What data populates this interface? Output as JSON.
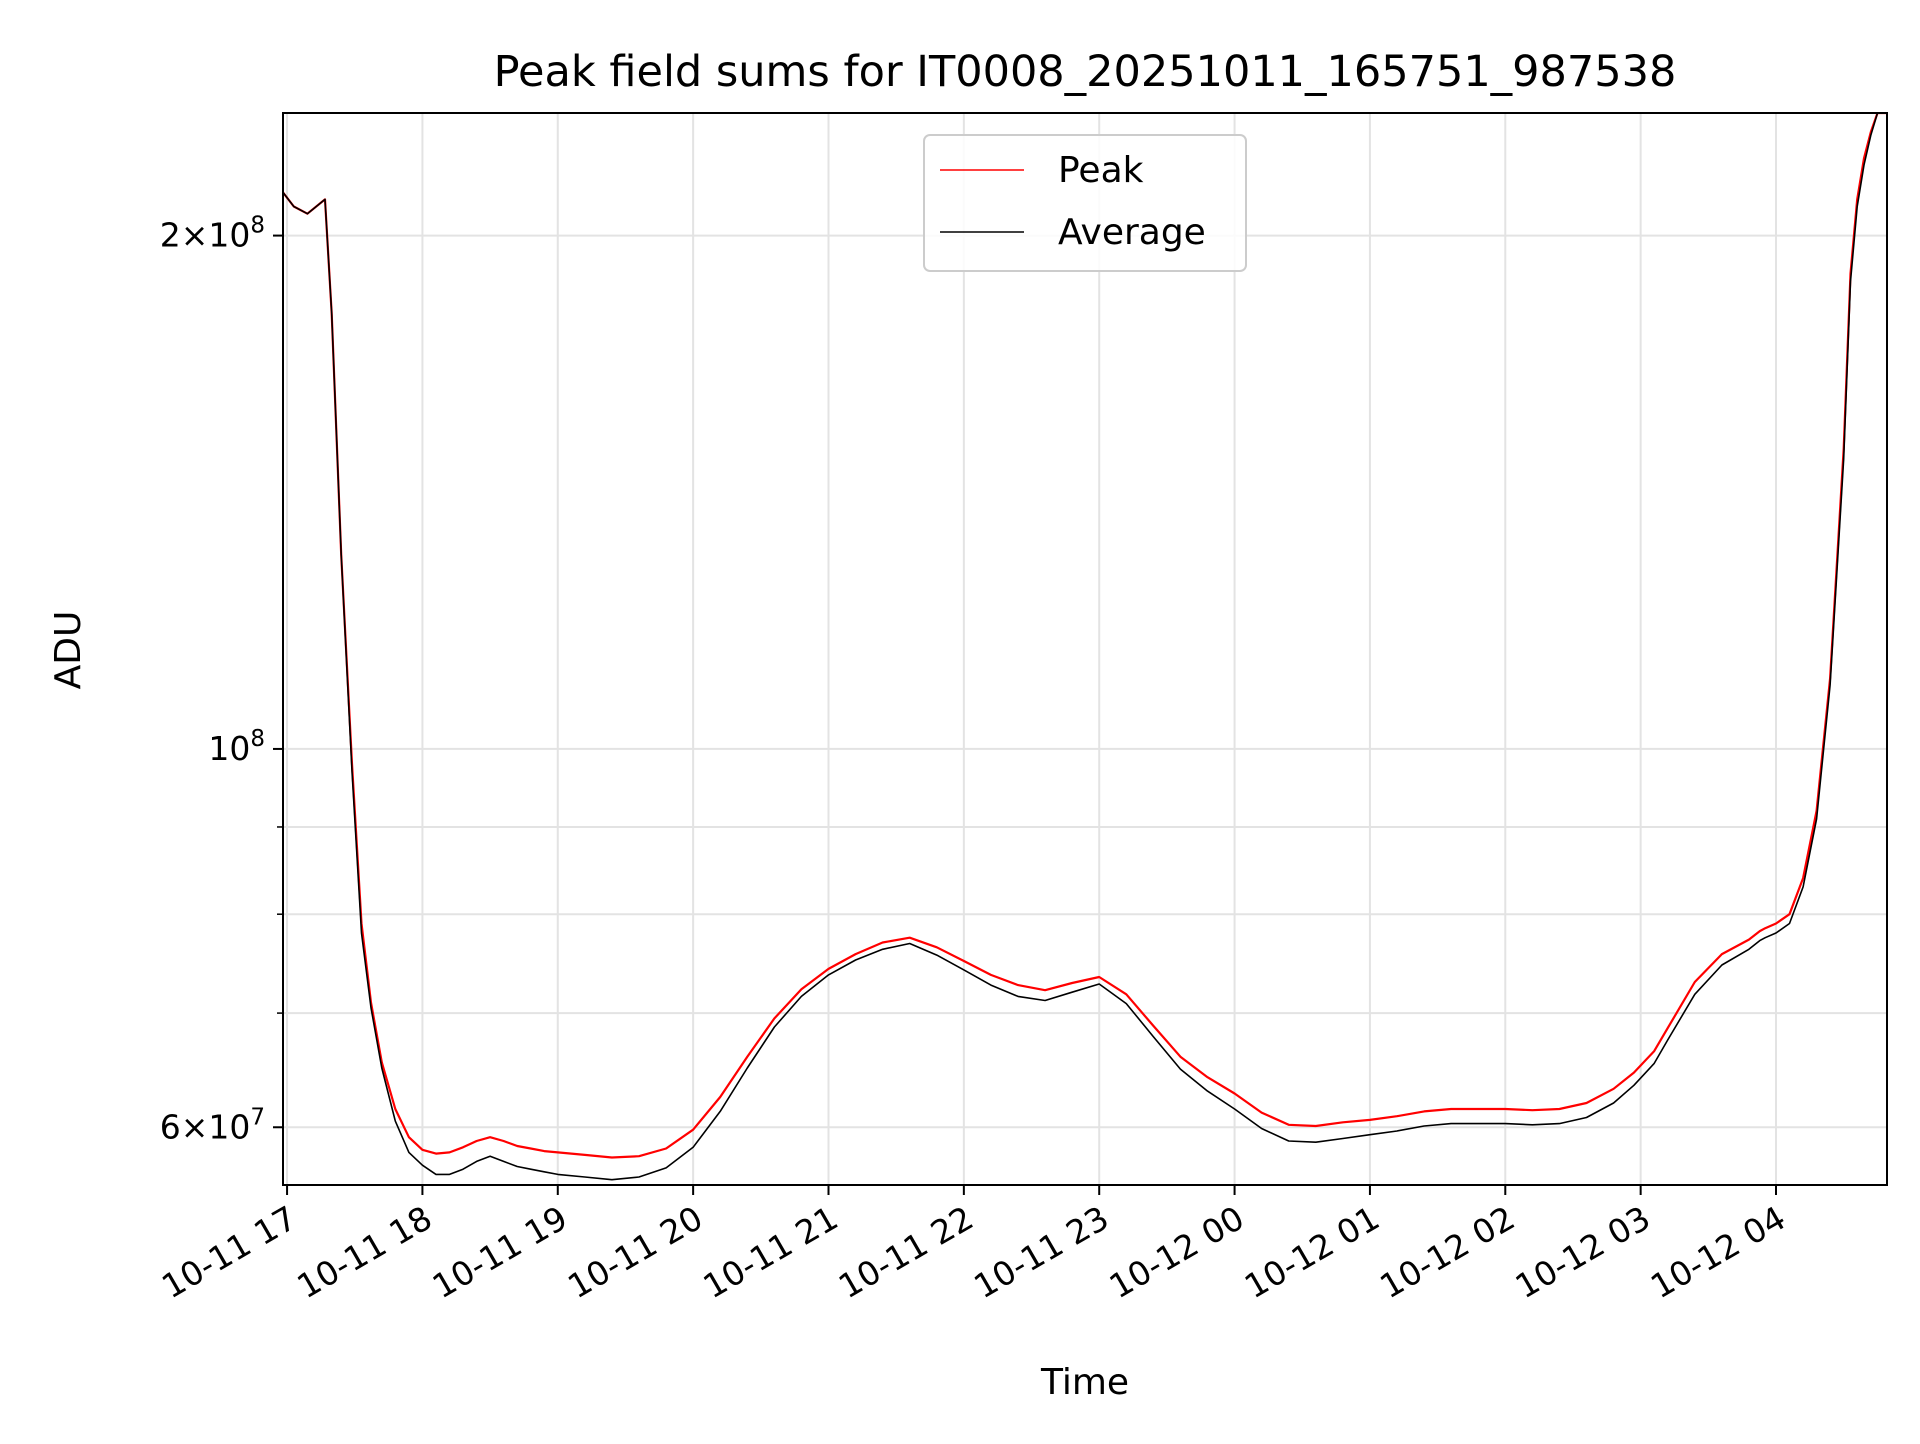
{
  "chart_data": {
    "type": "line",
    "title": "Peak field sums for IT0008_20251011_165751_987538",
    "xlabel": "Time",
    "ylabel": "ADU",
    "yscale": "log",
    "grid": true,
    "legend_position": "top-center",
    "xlim_hours": [
      -0.03,
      11.82
    ],
    "ylim": [
      55500000,
      236000000
    ],
    "x_ticks": [
      {
        "hour": 0,
        "label": "10-11 17"
      },
      {
        "hour": 1,
        "label": "10-11 18"
      },
      {
        "hour": 2,
        "label": "10-11 19"
      },
      {
        "hour": 3,
        "label": "10-11 20"
      },
      {
        "hour": 4,
        "label": "10-11 21"
      },
      {
        "hour": 5,
        "label": "10-11 22"
      },
      {
        "hour": 6,
        "label": "10-11 23"
      },
      {
        "hour": 7,
        "label": "10-12 00"
      },
      {
        "hour": 8,
        "label": "10-12 01"
      },
      {
        "hour": 9,
        "label": "10-12 02"
      },
      {
        "hour": 10,
        "label": "10-12 03"
      },
      {
        "hour": 11,
        "label": "10-12 04"
      }
    ],
    "y_major_ticks": [
      {
        "value": 60000000,
        "base": "6",
        "exp": "7"
      },
      {
        "value": 100000000,
        "base": "",
        "exp": "8"
      },
      {
        "value": 200000000,
        "base": "2",
        "exp": "8"
      }
    ],
    "y_minor_ticks": [
      70000000,
      80000000,
      90000000
    ],
    "series": [
      {
        "name": "Peak",
        "color": "#ff0000",
        "x_hours": [
          -0.03,
          0.05,
          0.15,
          0.28,
          0.33,
          0.4,
          0.48,
          0.55,
          0.62,
          0.7,
          0.8,
          0.9,
          1.0,
          1.1,
          1.2,
          1.3,
          1.4,
          1.5,
          1.6,
          1.7,
          1.8,
          1.9,
          2.0,
          2.2,
          2.4,
          2.6,
          2.8,
          3.0,
          3.2,
          3.4,
          3.6,
          3.8,
          4.0,
          4.2,
          4.4,
          4.6,
          4.8,
          5.0,
          5.2,
          5.4,
          5.6,
          5.8,
          6.0,
          6.2,
          6.4,
          6.6,
          6.8,
          7.0,
          7.2,
          7.4,
          7.6,
          7.8,
          8.0,
          8.2,
          8.4,
          8.6,
          8.8,
          9.0,
          9.2,
          9.4,
          9.6,
          9.8,
          9.95,
          10.1,
          10.2,
          10.4,
          10.6,
          10.8,
          10.88,
          10.92,
          11.0,
          11.1,
          11.2,
          11.3,
          11.4,
          11.5,
          11.55,
          11.6,
          11.65,
          11.7,
          11.75,
          11.82
        ],
        "values": [
          212000000,
          208000000,
          206000000,
          210000000,
          180000000,
          130000000,
          98000000,
          79000000,
          71000000,
          65500000,
          61500000,
          59200000,
          58200000,
          57900000,
          58000000,
          58400000,
          58900000,
          59200000,
          58900000,
          58500000,
          58300000,
          58100000,
          58000000,
          57800000,
          57600000,
          57700000,
          58300000,
          59800000,
          62500000,
          66000000,
          69500000,
          72300000,
          74300000,
          75800000,
          77000000,
          77500000,
          76500000,
          75100000,
          73700000,
          72700000,
          72200000,
          72900000,
          73500000,
          71800000,
          68800000,
          66000000,
          64200000,
          62800000,
          61200000,
          60200000,
          60100000,
          60400000,
          60600000,
          60900000,
          61300000,
          61500000,
          61500000,
          61500000,
          61400000,
          61500000,
          62000000,
          63200000,
          64600000,
          66500000,
          68600000,
          73000000,
          75800000,
          77300000,
          78200000,
          78500000,
          79000000,
          80000000,
          84000000,
          92000000,
          110000000,
          150000000,
          190000000,
          210000000,
          222000000,
          230000000,
          236000000,
          236000000
        ]
      },
      {
        "name": "Average",
        "color": "#000000",
        "x_hours": [
          -0.03,
          0.05,
          0.15,
          0.28,
          0.33,
          0.4,
          0.48,
          0.55,
          0.62,
          0.7,
          0.8,
          0.9,
          1.0,
          1.1,
          1.2,
          1.3,
          1.4,
          1.5,
          1.6,
          1.7,
          1.8,
          1.9,
          2.0,
          2.2,
          2.4,
          2.6,
          2.8,
          3.0,
          3.2,
          3.4,
          3.6,
          3.8,
          4.0,
          4.2,
          4.4,
          4.6,
          4.8,
          5.0,
          5.2,
          5.4,
          5.6,
          5.8,
          6.0,
          6.2,
          6.4,
          6.6,
          6.8,
          7.0,
          7.2,
          7.4,
          7.6,
          7.8,
          8.0,
          8.2,
          8.4,
          8.6,
          8.8,
          9.0,
          9.2,
          9.4,
          9.6,
          9.8,
          9.95,
          10.1,
          10.2,
          10.4,
          10.6,
          10.8,
          10.88,
          10.92,
          11.0,
          11.1,
          11.2,
          11.3,
          11.4,
          11.5,
          11.55,
          11.6,
          11.65,
          11.7,
          11.75,
          11.82
        ],
        "values": [
          212000000,
          208000000,
          206000000,
          210000000,
          180000000,
          130000000,
          97000000,
          78000000,
          70500000,
          65000000,
          60500000,
          58000000,
          57000000,
          56300000,
          56300000,
          56700000,
          57300000,
          57700000,
          57300000,
          56900000,
          56700000,
          56500000,
          56300000,
          56100000,
          55900000,
          56100000,
          56800000,
          58400000,
          61300000,
          65000000,
          68700000,
          71600000,
          73700000,
          75200000,
          76300000,
          76900000,
          75700000,
          74200000,
          72700000,
          71600000,
          71200000,
          72000000,
          72800000,
          70900000,
          67800000,
          64900000,
          63000000,
          61500000,
          59900000,
          58900000,
          58800000,
          59100000,
          59400000,
          59700000,
          60100000,
          60300000,
          60300000,
          60300000,
          60200000,
          60300000,
          60800000,
          62000000,
          63500000,
          65400000,
          67500000,
          71800000,
          74700000,
          76300000,
          77200000,
          77500000,
          78000000,
          79000000,
          83000000,
          91000000,
          109000000,
          148000000,
          188000000,
          208000000,
          220000000,
          229000000,
          236000000,
          236000000
        ]
      }
    ]
  }
}
